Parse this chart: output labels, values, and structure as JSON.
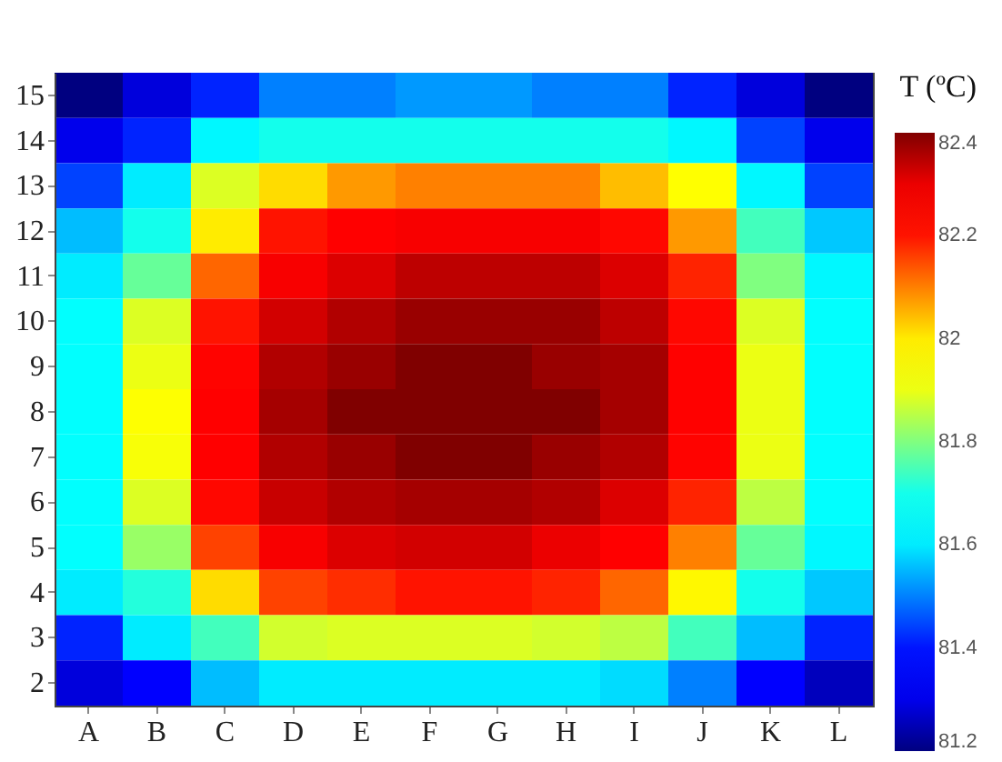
{
  "chart_data": {
    "type": "heatmap",
    "clabel": "T (ºC)",
    "categories": [
      "A",
      "B",
      "C",
      "D",
      "E",
      "F",
      "G",
      "H",
      "I",
      "J",
      "K",
      "L"
    ],
    "y_categories": [
      "15",
      "14",
      "13",
      "12",
      "11",
      "10",
      "9",
      "8",
      "7",
      "6",
      "5",
      "4",
      "3",
      "2"
    ],
    "cells": [
      [
        81.2,
        81.28,
        81.42,
        81.5,
        81.5,
        81.52,
        81.52,
        81.5,
        81.5,
        81.42,
        81.28,
        81.2
      ],
      [
        81.3,
        81.42,
        81.62,
        81.7,
        81.7,
        81.7,
        81.7,
        81.7,
        81.7,
        81.62,
        81.45,
        81.3
      ],
      [
        81.45,
        81.6,
        81.88,
        82.02,
        82.08,
        82.1,
        82.1,
        82.1,
        82.05,
        81.95,
        81.62,
        81.45
      ],
      [
        81.55,
        81.7,
        82.0,
        82.2,
        82.25,
        82.28,
        82.28,
        82.28,
        82.22,
        82.08,
        81.75,
        81.56
      ],
      [
        81.6,
        81.78,
        82.12,
        82.28,
        82.32,
        82.35,
        82.35,
        82.35,
        82.32,
        82.18,
        81.8,
        81.62
      ],
      [
        81.66,
        81.88,
        82.2,
        82.33,
        82.36,
        82.38,
        82.38,
        82.38,
        82.35,
        82.22,
        81.88,
        81.66
      ],
      [
        81.66,
        81.9,
        82.23,
        82.36,
        82.38,
        82.4,
        82.4,
        82.38,
        82.37,
        82.24,
        81.9,
        81.66
      ],
      [
        81.66,
        81.94,
        82.25,
        82.37,
        82.4,
        82.4,
        82.4,
        82.4,
        82.37,
        82.24,
        81.9,
        81.66
      ],
      [
        81.66,
        81.92,
        82.25,
        82.36,
        82.38,
        82.4,
        82.4,
        82.38,
        82.36,
        82.23,
        81.9,
        81.66
      ],
      [
        81.66,
        81.88,
        82.22,
        82.34,
        82.36,
        82.37,
        82.37,
        82.36,
        82.32,
        82.18,
        81.85,
        81.66
      ],
      [
        81.66,
        81.82,
        82.15,
        82.28,
        82.32,
        82.33,
        82.33,
        82.3,
        82.25,
        82.1,
        81.78,
        81.62
      ],
      [
        81.6,
        81.72,
        82.02,
        82.15,
        82.17,
        82.2,
        82.2,
        82.18,
        82.12,
        81.98,
        81.7,
        81.56
      ],
      [
        81.42,
        81.6,
        81.75,
        81.87,
        81.88,
        81.88,
        81.88,
        81.87,
        81.85,
        81.75,
        81.55,
        81.42
      ],
      [
        81.28,
        81.35,
        81.55,
        81.6,
        81.6,
        81.6,
        81.6,
        81.6,
        81.58,
        81.5,
        81.35,
        81.25
      ]
    ],
    "clim": [
      81.2,
      82.4
    ],
    "cticks": [
      81.2,
      81.4,
      81.6,
      81.8,
      82,
      82.2,
      82.4
    ]
  }
}
